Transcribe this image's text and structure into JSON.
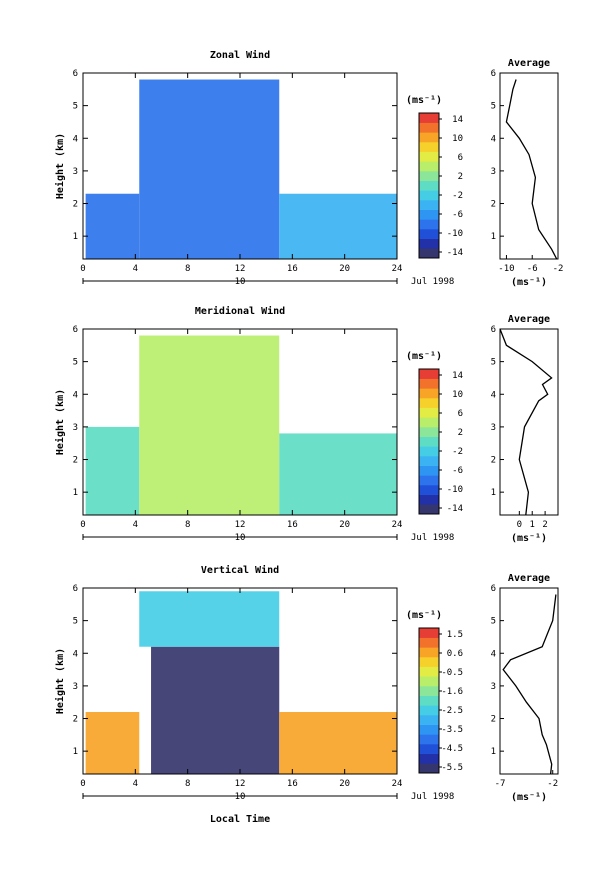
{
  "figure": {
    "xlabel": "Local Time",
    "date_label": "Jul 1998",
    "day_label": "10",
    "ylabel": "Height (km)",
    "unit_label": "(ms⁻¹)",
    "avg_title": "Average",
    "avg_xlabel": "(ms⁻¹)"
  },
  "colors": {
    "scale": [
      "#36366e",
      "#2231a8",
      "#2050d8",
      "#2d74ec",
      "#2f95f2",
      "#3bb3f2",
      "#46cde6",
      "#5fdcc4",
      "#8be69a",
      "#b8ee6a",
      "#e2ec44",
      "#f6d12c",
      "#f7a427",
      "#f2722c",
      "#e63e34"
    ],
    "no_data": "#ffffff",
    "contour": "#000000",
    "axis": "#000000"
  },
  "chart_data": [
    {
      "type": "heatmap",
      "title": "Zonal Wind",
      "xlabel": "Local Time",
      "ylabel": "Height (km)",
      "xlim": [
        0,
        24
      ],
      "ylim": [
        0.3,
        6
      ],
      "xticks": [
        0,
        4,
        8,
        12,
        16,
        20,
        24
      ],
      "yticks": [
        1,
        2,
        3,
        4,
        5,
        6
      ],
      "colorbar": {
        "label": "(ms⁻¹)",
        "ticks": [
          14,
          10,
          6,
          2,
          -2,
          -6,
          -10,
          -14
        ],
        "range": [
          -15,
          15
        ]
      },
      "regions": [
        {
          "x": [
            0.2,
            4.3
          ],
          "y": [
            0.3,
            2.3
          ],
          "value": -8
        },
        {
          "x": [
            4.3,
            15
          ],
          "y": [
            0.3,
            5.8
          ],
          "value": -8
        },
        {
          "x": [
            15,
            24
          ],
          "y": [
            0.3,
            2.3
          ],
          "value": -5
        }
      ],
      "profile": {
        "title": "Average",
        "xlabel": "(ms⁻¹)",
        "xlim": [
          -11,
          -2
        ],
        "xticks": [
          -10,
          -6,
          -2
        ],
        "points": [
          [
            -2.2,
            0.3
          ],
          [
            -3,
            0.6
          ],
          [
            -5,
            1.2
          ],
          [
            -6,
            2
          ],
          [
            -5.5,
            2.8
          ],
          [
            -6.5,
            3.5
          ],
          [
            -8,
            4
          ],
          [
            -10,
            4.5
          ],
          [
            -9.5,
            5
          ],
          [
            -9,
            5.5
          ],
          [
            -8.5,
            5.8
          ]
        ]
      }
    },
    {
      "type": "heatmap",
      "title": "Meridional Wind",
      "xlabel": "Local Time",
      "ylabel": "Height (km)",
      "xlim": [
        0,
        24
      ],
      "ylim": [
        0.3,
        6
      ],
      "xticks": [
        0,
        4,
        8,
        12,
        16,
        20,
        24
      ],
      "yticks": [
        1,
        2,
        3,
        4,
        5,
        6
      ],
      "colorbar": {
        "label": "(ms⁻¹)",
        "ticks": [
          14,
          10,
          6,
          2,
          -2,
          -6,
          -10,
          -14
        ],
        "range": [
          -15,
          15
        ]
      },
      "regions": [
        {
          "x": [
            0.2,
            4.3
          ],
          "y": [
            0.3,
            3
          ],
          "value": 0
        },
        {
          "x": [
            4.3,
            15
          ],
          "y": [
            0.3,
            5.8
          ],
          "value": 3
        },
        {
          "x": [
            15,
            24
          ],
          "y": [
            0.3,
            2.8
          ],
          "value": 0
        }
      ],
      "profile": {
        "title": "Average",
        "xlabel": "(ms⁻¹)",
        "xlim": [
          -1.5,
          3
        ],
        "xticks": [
          0,
          1,
          2
        ],
        "points": [
          [
            0.5,
            0.3
          ],
          [
            0.7,
            1
          ],
          [
            0,
            2
          ],
          [
            0.4,
            3
          ],
          [
            1.5,
            3.8
          ],
          [
            2.2,
            4
          ],
          [
            1.8,
            4.3
          ],
          [
            2.5,
            4.5
          ],
          [
            1,
            5
          ],
          [
            -1,
            5.5
          ],
          [
            -1.5,
            6
          ]
        ]
      }
    },
    {
      "type": "heatmap",
      "title": "Vertical Wind",
      "xlabel": "Local Time",
      "ylabel": "Height (km)",
      "xlim": [
        0,
        24
      ],
      "ylim": [
        0.3,
        6
      ],
      "xticks": [
        0,
        4,
        8,
        12,
        16,
        20,
        24
      ],
      "yticks": [
        1,
        2,
        3,
        4,
        5,
        6
      ],
      "colorbar": {
        "label": "(ms⁻¹)",
        "ticks": [
          1.5,
          0.6,
          -0.5,
          -1.6,
          -2.5,
          -3.5,
          -4.5,
          -5.5
        ],
        "range": [
          -6,
          2
        ]
      },
      "regions": [
        {
          "x": [
            0.2,
            4.3
          ],
          "y": [
            0.3,
            2.2
          ],
          "value": 0.5
        },
        {
          "x": [
            5.2,
            15
          ],
          "y": [
            0.3,
            4.2
          ],
          "value": -5.9
        },
        {
          "x": [
            4.3,
            15
          ],
          "y": [
            4.2,
            5.9
          ],
          "value": -2.5
        },
        {
          "x": [
            15,
            24
          ],
          "y": [
            0.3,
            2.2
          ],
          "value": 0.5
        }
      ],
      "profile": {
        "title": "Average",
        "xlabel": "(ms⁻¹)",
        "xlim": [
          -7,
          -1.5
        ],
        "xticks": [
          -7,
          -2
        ],
        "points": [
          [
            -2.2,
            0.3
          ],
          [
            -2.1,
            0.6
          ],
          [
            -2.6,
            1.2
          ],
          [
            -3,
            1.5
          ],
          [
            -3.3,
            2
          ],
          [
            -4.5,
            2.5
          ],
          [
            -5.5,
            3
          ],
          [
            -6.7,
            3.5
          ],
          [
            -6,
            3.8
          ],
          [
            -3,
            4.2
          ],
          [
            -2,
            5
          ],
          [
            -1.7,
            5.8
          ]
        ]
      }
    }
  ]
}
